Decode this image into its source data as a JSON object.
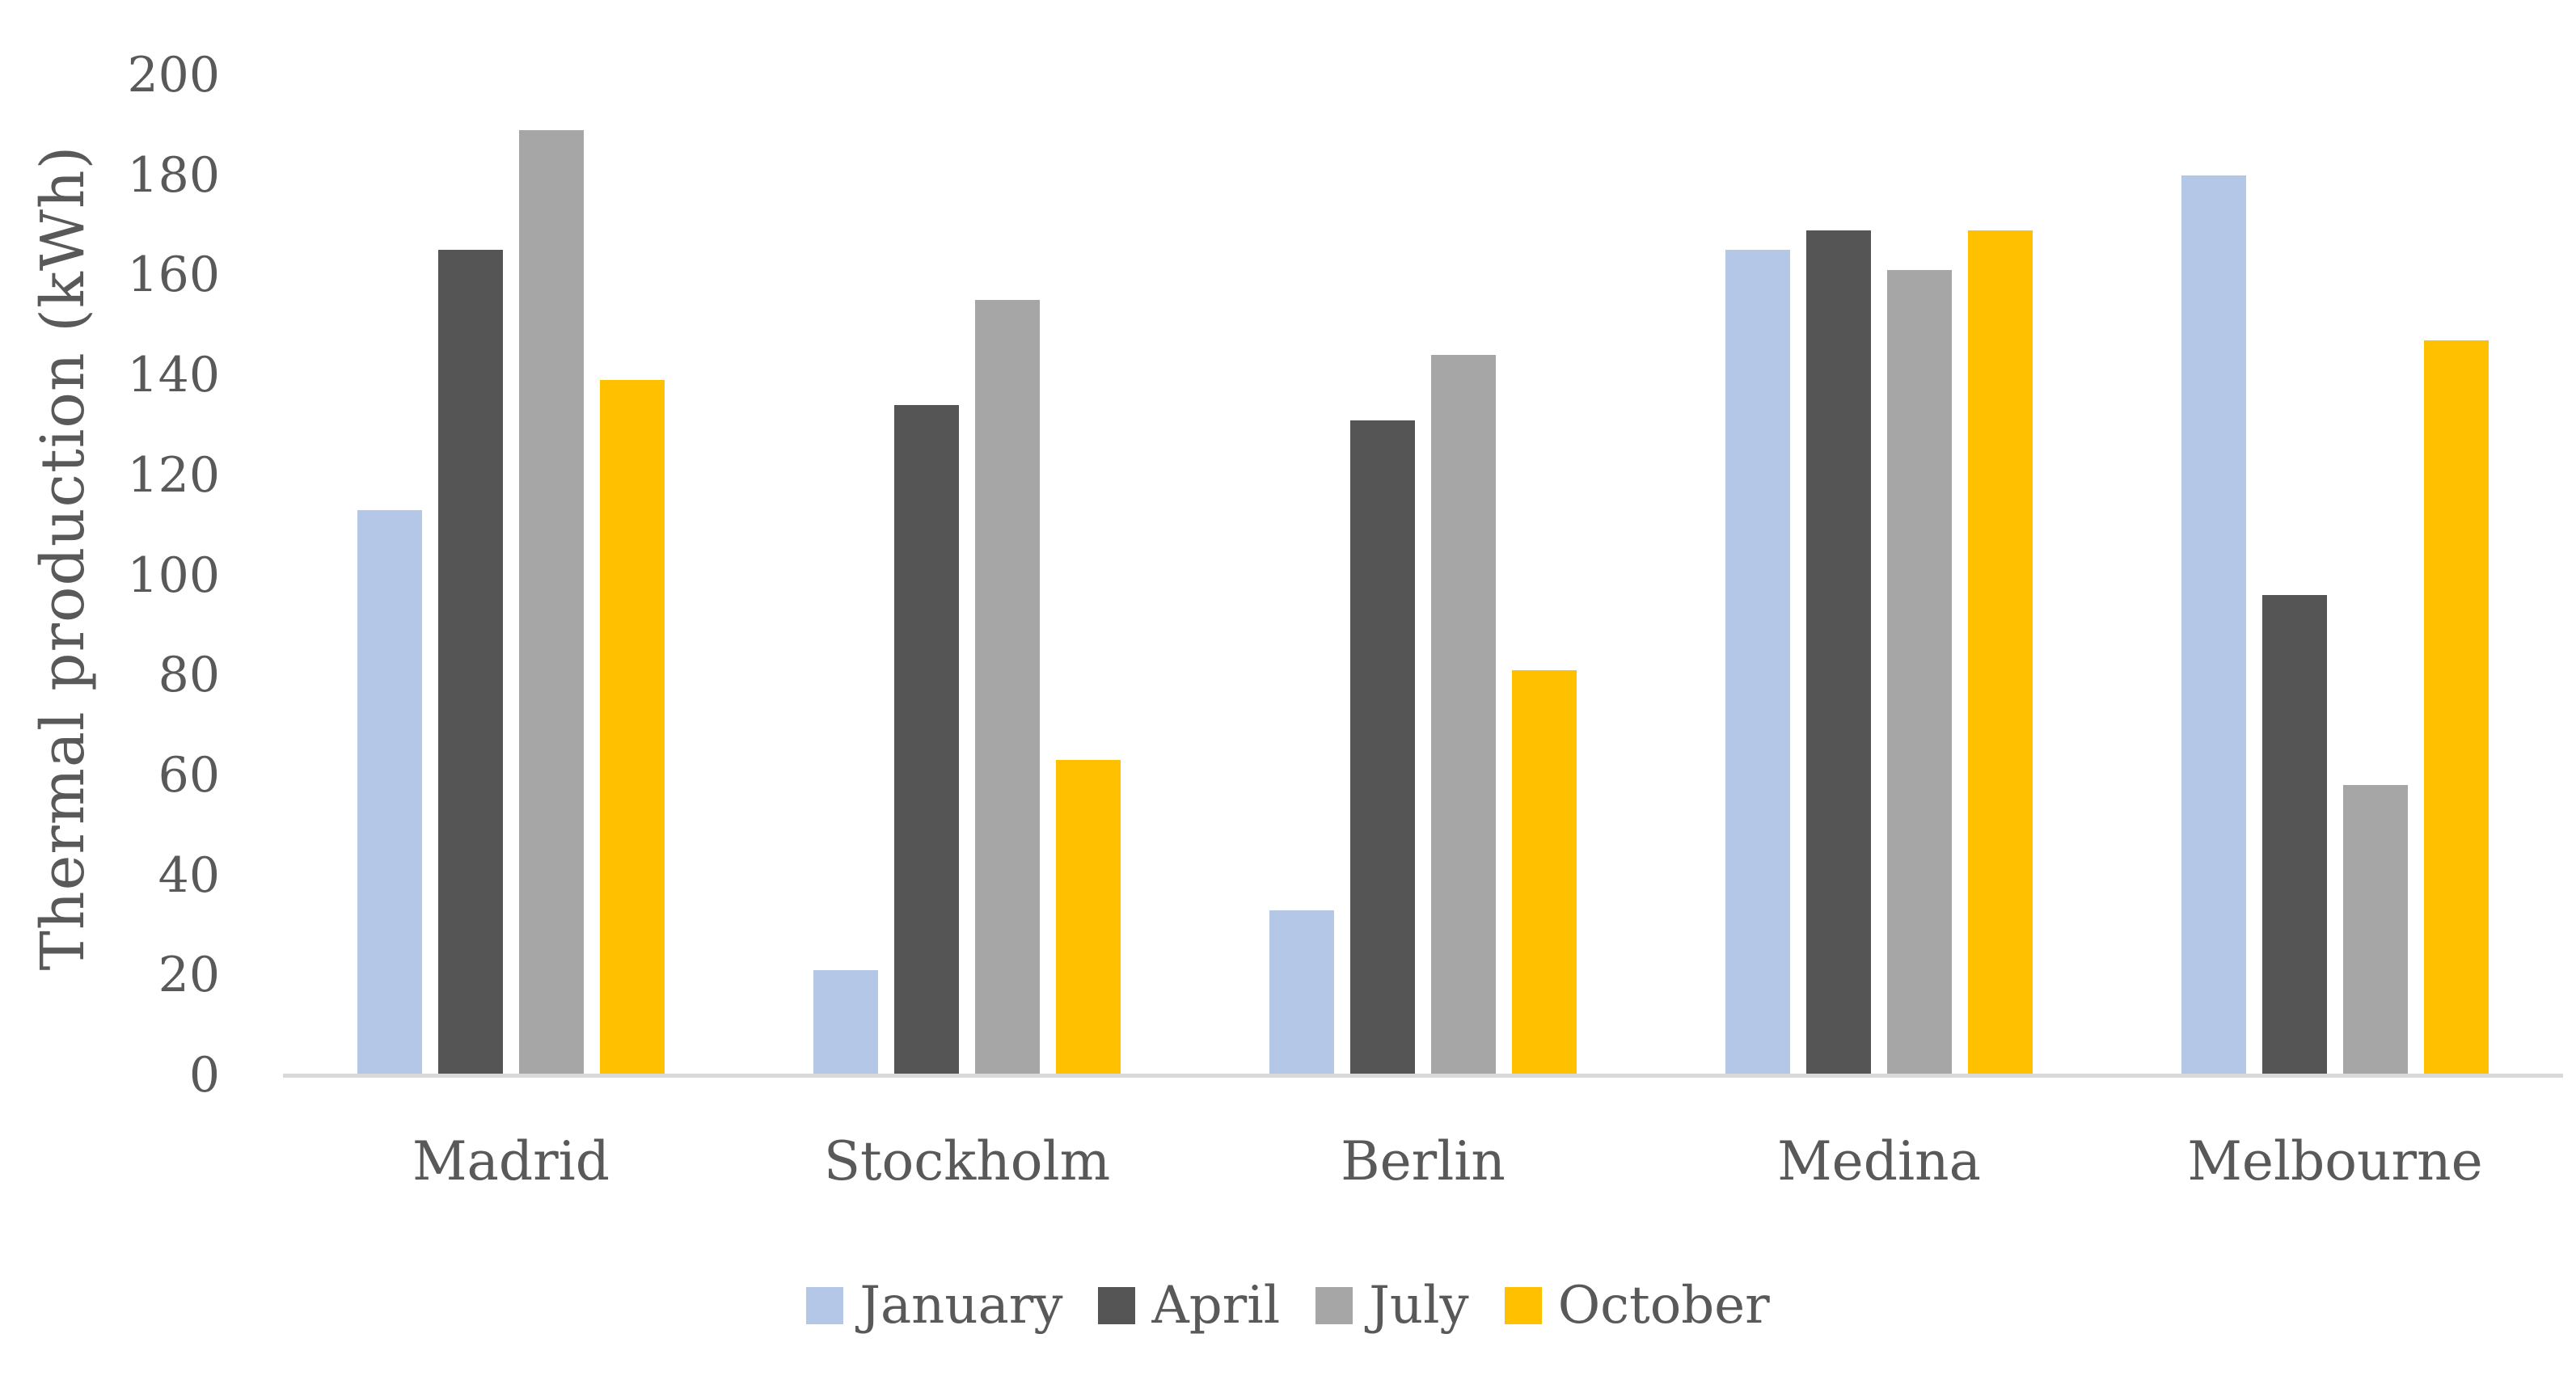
{
  "chart_data": {
    "type": "bar",
    "title": "",
    "ylabel": "Thermal production (kWh)",
    "xlabel": "",
    "ylim": [
      0,
      200
    ],
    "ytick_step": 20,
    "yticks": [
      200,
      180,
      160,
      140,
      120,
      100,
      80,
      60,
      40,
      20,
      0
    ],
    "categories": [
      "Madrid",
      "Stockholm",
      "Berlin",
      "Medina",
      "Melbourne"
    ],
    "series": [
      {
        "name": "January",
        "color": "#B4C7E7",
        "values": [
          113,
          21,
          33,
          165,
          180
        ]
      },
      {
        "name": "April",
        "color": "#555555",
        "values": [
          165,
          134,
          131,
          169,
          96
        ]
      },
      {
        "name": "July",
        "color": "#A6A6A6",
        "values": [
          189,
          155,
          144,
          161,
          58
        ]
      },
      {
        "name": "October",
        "color": "#FFC000",
        "values": [
          139,
          63,
          81,
          169,
          147
        ]
      }
    ],
    "legend_position": "bottom",
    "grid": false,
    "axis_line_color": "#D9D9D9",
    "text_color": "#595959",
    "background_color": "#FFFFFF"
  }
}
